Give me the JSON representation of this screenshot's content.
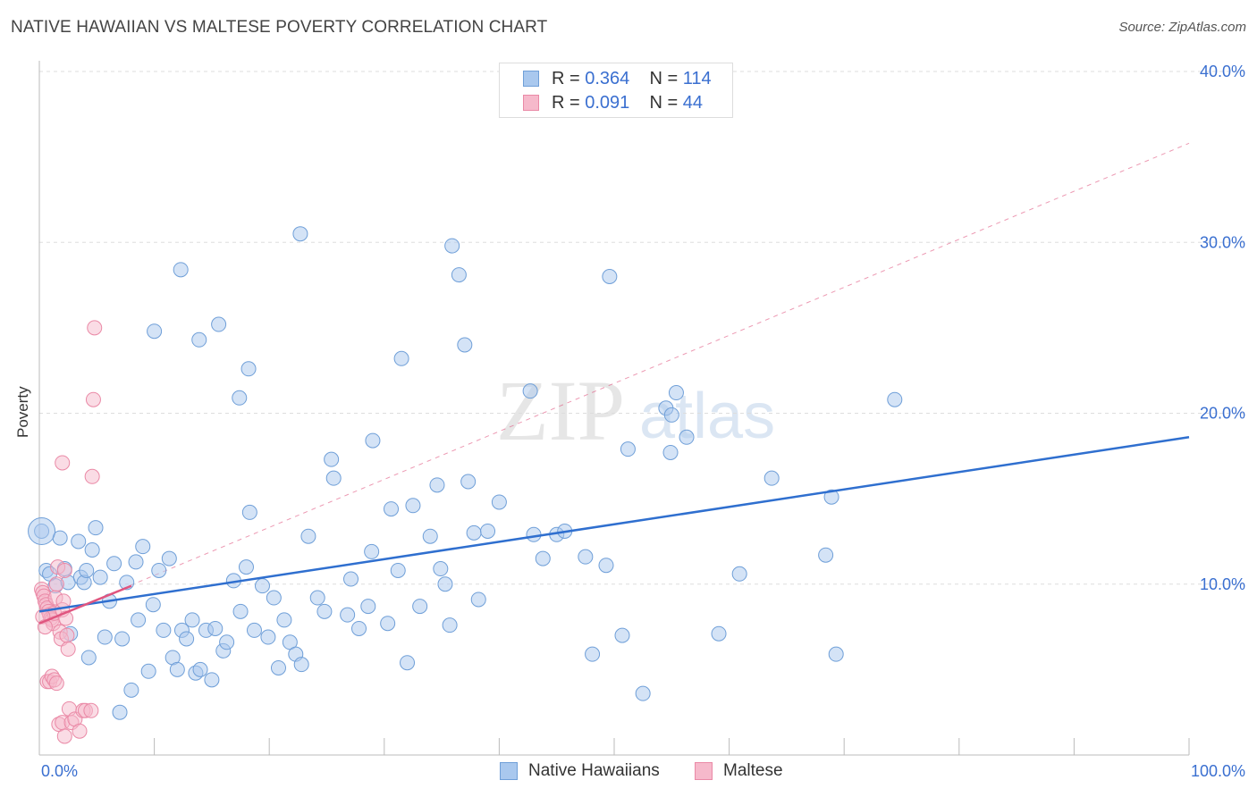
{
  "title": "NATIVE HAWAIIAN VS MALTESE POVERTY CORRELATION CHART",
  "source": "Source: ZipAtlas.com",
  "watermark": {
    "zip": "ZIP",
    "atlas": "atlas"
  },
  "colors": {
    "blue_fill": "#a9c8ee",
    "blue_stroke": "#6f9fd8",
    "blue_line": "#2f6fcf",
    "pink_fill": "#f6b9cb",
    "pink_stroke": "#ea89a6",
    "pink_line": "#e0557f",
    "tick_text": "#3a6fd0",
    "grid": "#dddddd"
  },
  "legend_stats": [
    {
      "r_label": "R = ",
      "r_value": "0.364",
      "n_label": "N = ",
      "n_value": "114",
      "color": "blue"
    },
    {
      "r_label": "R = ",
      "r_value": "0.091",
      "n_label": "N = ",
      "n_value": "44",
      "color": "pink"
    }
  ],
  "bottom_legend": [
    "Native Hawaiians",
    "Maltese"
  ],
  "chart_data": {
    "type": "scatter",
    "title": "NATIVE HAWAIIAN VS MALTESE POVERTY CORRELATION CHART",
    "xlabel": "",
    "ylabel": "Poverty",
    "xlim": [
      0,
      100
    ],
    "ylim": [
      0,
      40
    ],
    "x_tick_labels": [
      "0.0%",
      "100.0%"
    ],
    "y_ticks": [
      10,
      20,
      30,
      40
    ],
    "y_tick_labels": [
      "10.0%",
      "20.0%",
      "30.0%",
      "40.0%"
    ],
    "grid": "horizontal dashed",
    "legend_position": "top-center and bottom",
    "series": [
      {
        "name": "Native Hawaiians",
        "color": "blue",
        "trend": {
          "x": [
            0,
            100
          ],
          "y": [
            8.4,
            18.6
          ]
        },
        "points": [
          [
            0.2,
            13.1
          ],
          [
            0.6,
            10.8
          ],
          [
            0.9,
            10.6
          ],
          [
            1.4,
            9.9
          ],
          [
            1.8,
            12.7
          ],
          [
            2.2,
            10.9
          ],
          [
            2.5,
            10.1
          ],
          [
            2.7,
            7.1
          ],
          [
            3.4,
            12.5
          ],
          [
            3.6,
            10.4
          ],
          [
            3.9,
            10.1
          ],
          [
            4.1,
            10.8
          ],
          [
            4.3,
            5.7
          ],
          [
            4.6,
            12.0
          ],
          [
            4.9,
            13.3
          ],
          [
            5.3,
            10.4
          ],
          [
            5.7,
            6.9
          ],
          [
            6.1,
            9.0
          ],
          [
            6.5,
            11.2
          ],
          [
            7.0,
            2.5
          ],
          [
            7.2,
            6.8
          ],
          [
            7.6,
            10.1
          ],
          [
            8.0,
            3.8
          ],
          [
            8.4,
            11.3
          ],
          [
            8.6,
            7.9
          ],
          [
            9.0,
            12.2
          ],
          [
            9.5,
            4.9
          ],
          [
            9.9,
            8.8
          ],
          [
            10.4,
            10.8
          ],
          [
            10.8,
            7.3
          ],
          [
            11.3,
            11.5
          ],
          [
            11.6,
            5.7
          ],
          [
            12.0,
            5.0
          ],
          [
            12.4,
            7.3
          ],
          [
            12.8,
            6.8
          ],
          [
            13.3,
            7.9
          ],
          [
            13.6,
            4.8
          ],
          [
            14.0,
            5.0
          ],
          [
            14.5,
            7.3
          ],
          [
            15.0,
            4.4
          ],
          [
            15.3,
            7.4
          ],
          [
            16.0,
            6.1
          ],
          [
            16.3,
            6.6
          ],
          [
            16.9,
            10.2
          ],
          [
            17.5,
            8.4
          ],
          [
            18.0,
            11.0
          ],
          [
            18.3,
            14.2
          ],
          [
            18.7,
            7.3
          ],
          [
            19.4,
            9.9
          ],
          [
            19.9,
            6.9
          ],
          [
            20.4,
            9.2
          ],
          [
            20.8,
            5.1
          ],
          [
            21.3,
            7.9
          ],
          [
            21.8,
            6.6
          ],
          [
            22.3,
            5.9
          ],
          [
            22.8,
            5.3
          ],
          [
            23.4,
            12.8
          ],
          [
            24.2,
            9.2
          ],
          [
            24.8,
            8.4
          ],
          [
            25.4,
            17.3
          ],
          [
            25.6,
            16.2
          ],
          [
            26.8,
            8.2
          ],
          [
            27.1,
            10.3
          ],
          [
            27.8,
            7.4
          ],
          [
            28.6,
            8.7
          ],
          [
            29.0,
            18.4
          ],
          [
            28.9,
            11.9
          ],
          [
            30.3,
            7.7
          ],
          [
            30.6,
            14.4
          ],
          [
            31.2,
            10.8
          ],
          [
            31.5,
            23.2
          ],
          [
            32.0,
            5.4
          ],
          [
            32.5,
            14.6
          ],
          [
            33.1,
            8.7
          ],
          [
            34.0,
            12.8
          ],
          [
            34.6,
            15.8
          ],
          [
            34.9,
            10.9
          ],
          [
            35.3,
            10.0
          ],
          [
            35.7,
            7.6
          ],
          [
            35.9,
            29.8
          ],
          [
            36.5,
            28.1
          ],
          [
            37.0,
            24.0
          ],
          [
            37.3,
            16.0
          ],
          [
            37.8,
            13.0
          ],
          [
            38.2,
            9.1
          ],
          [
            39.0,
            13.1
          ],
          [
            40.0,
            14.8
          ],
          [
            42.7,
            21.3
          ],
          [
            43.0,
            12.9
          ],
          [
            43.8,
            11.5
          ],
          [
            45.0,
            12.9
          ],
          [
            45.7,
            13.1
          ],
          [
            47.5,
            11.6
          ],
          [
            48.1,
            5.9
          ],
          [
            49.3,
            11.1
          ],
          [
            49.6,
            28.0
          ],
          [
            50.7,
            7.0
          ],
          [
            51.2,
            17.9
          ],
          [
            52.5,
            3.6
          ],
          [
            54.5,
            20.3
          ],
          [
            54.9,
            17.7
          ],
          [
            55.0,
            19.9
          ],
          [
            55.4,
            21.2
          ],
          [
            56.3,
            18.6
          ],
          [
            59.1,
            7.1
          ],
          [
            60.9,
            10.6
          ],
          [
            63.7,
            16.2
          ],
          [
            68.4,
            11.7
          ],
          [
            68.9,
            15.1
          ],
          [
            69.3,
            5.9
          ],
          [
            74.4,
            20.8
          ],
          [
            22.7,
            30.5
          ],
          [
            10.0,
            24.8
          ],
          [
            12.3,
            28.4
          ],
          [
            13.9,
            24.3
          ],
          [
            15.6,
            25.2
          ],
          [
            17.4,
            20.9
          ],
          [
            18.2,
            22.6
          ]
        ]
      },
      {
        "name": "Maltese",
        "color": "pink",
        "trend": {
          "x": [
            0,
            8
          ],
          "y": [
            7.7,
            9.9
          ]
        },
        "trend_extended": {
          "x": [
            0,
            100
          ],
          "y": [
            7.7,
            35.8
          ]
        },
        "points": [
          [
            0.2,
            9.7
          ],
          [
            0.3,
            9.5
          ],
          [
            0.4,
            9.3
          ],
          [
            0.5,
            9.0
          ],
          [
            0.6,
            8.8
          ],
          [
            0.7,
            8.6
          ],
          [
            0.8,
            8.4
          ],
          [
            0.9,
            8.2
          ],
          [
            1.0,
            8.0
          ],
          [
            1.1,
            7.9
          ],
          [
            1.2,
            7.7
          ],
          [
            1.3,
            8.3
          ],
          [
            1.4,
            9.2
          ],
          [
            1.5,
            10.0
          ],
          [
            1.6,
            11.0
          ],
          [
            1.8,
            7.2
          ],
          [
            1.9,
            6.8
          ],
          [
            2.0,
            8.5
          ],
          [
            2.1,
            9.0
          ],
          [
            2.2,
            10.8
          ],
          [
            2.3,
            8.0
          ],
          [
            2.4,
            7.0
          ],
          [
            2.5,
            6.2
          ],
          [
            0.3,
            8.1
          ],
          [
            0.5,
            7.5
          ],
          [
            0.7,
            4.3
          ],
          [
            0.9,
            4.3
          ],
          [
            1.1,
            4.6
          ],
          [
            1.3,
            4.4
          ],
          [
            1.5,
            4.2
          ],
          [
            1.7,
            1.8
          ],
          [
            2.0,
            1.9
          ],
          [
            2.2,
            1.1
          ],
          [
            2.6,
            2.7
          ],
          [
            2.8,
            1.9
          ],
          [
            3.1,
            2.1
          ],
          [
            3.5,
            1.4
          ],
          [
            3.8,
            2.6
          ],
          [
            4.0,
            2.6
          ],
          [
            4.5,
            2.6
          ],
          [
            4.8,
            25.0
          ],
          [
            2.0,
            17.1
          ],
          [
            4.6,
            16.3
          ],
          [
            4.7,
            20.8
          ]
        ]
      }
    ]
  }
}
